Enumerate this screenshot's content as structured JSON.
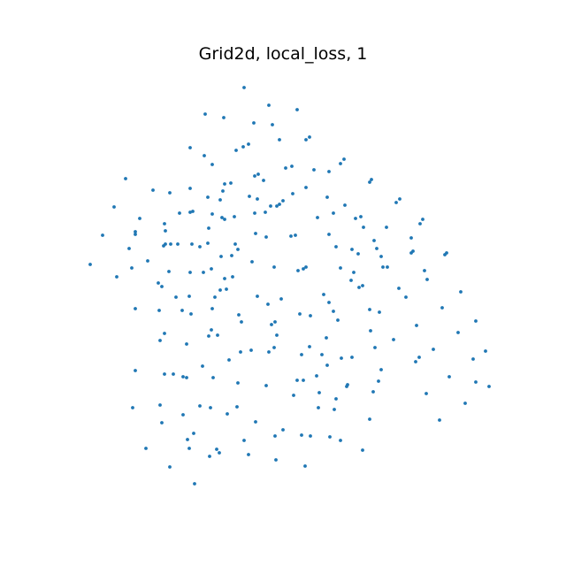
{
  "chart_data": {
    "type": "scatter",
    "title": "Grid2d, local_loss, 1",
    "xlabel": "",
    "ylabel": "",
    "axes_visible": false,
    "grid": false,
    "marker_color": "#1f77b4",
    "points": [
      [
        276,
        99
      ],
      [
        304,
        119
      ],
      [
        336,
        124
      ],
      [
        232,
        129
      ],
      [
        253,
        133
      ],
      [
        287,
        139
      ],
      [
        308,
        141
      ],
      [
        350,
        155
      ],
      [
        346,
        158
      ],
      [
        316,
        158
      ],
      [
        281,
        163
      ],
      [
        275,
        166
      ],
      [
        267,
        170
      ],
      [
        215,
        167
      ],
      [
        231,
        176
      ],
      [
        389,
        180
      ],
      [
        385,
        185
      ],
      [
        240,
        186
      ],
      [
        330,
        188
      ],
      [
        323,
        190
      ],
      [
        355,
        192
      ],
      [
        372,
        194
      ],
      [
        292,
        197
      ],
      [
        288,
        199
      ],
      [
        298,
        204
      ],
      [
        420,
        203
      ],
      [
        418,
        206
      ],
      [
        142,
        202
      ],
      [
        261,
        207
      ],
      [
        254,
        208
      ],
      [
        346,
        212
      ],
      [
        215,
        213
      ],
      [
        252,
        216
      ],
      [
        173,
        215
      ],
      [
        192,
        218
      ],
      [
        331,
        219
      ],
      [
        282,
        222
      ],
      [
        235,
        223
      ],
      [
        320,
        227
      ],
      [
        316,
        231
      ],
      [
        313,
        233
      ],
      [
        370,
        223
      ],
      [
        452,
        225
      ],
      [
        448,
        229
      ],
      [
        291,
        225
      ],
      [
        249,
        226
      ],
      [
        129,
        234
      ],
      [
        306,
        233
      ],
      [
        390,
        232
      ],
      [
        215,
        240
      ],
      [
        218,
        239
      ],
      [
        203,
        241
      ],
      [
        300,
        240
      ],
      [
        240,
        242
      ],
      [
        288,
        241
      ],
      [
        377,
        241
      ],
      [
        158,
        247
      ],
      [
        186,
        253
      ],
      [
        251,
        246
      ],
      [
        254,
        248
      ],
      [
        265,
        245
      ],
      [
        402,
        247
      ],
      [
        408,
        245
      ],
      [
        359,
        246
      ],
      [
        478,
        248
      ],
      [
        475,
        253
      ],
      [
        411,
        257
      ],
      [
        153,
        262
      ],
      [
        153,
        265
      ],
      [
        187,
        261
      ],
      [
        236,
        258
      ],
      [
        437,
        257
      ],
      [
        116,
        266
      ],
      [
        289,
        264
      ],
      [
        301,
        268
      ],
      [
        329,
        267
      ],
      [
        334,
        266
      ],
      [
        372,
        265
      ],
      [
        423,
        272
      ],
      [
        465,
        269
      ],
      [
        187,
        276
      ],
      [
        185,
        278
      ],
      [
        193,
        276
      ],
      [
        201,
        276
      ],
      [
        217,
        276
      ],
      [
        266,
        276
      ],
      [
        235,
        275
      ],
      [
        226,
        279
      ],
      [
        269,
        282
      ],
      [
        380,
        279
      ],
      [
        426,
        281
      ],
      [
        465,
        286
      ],
      [
        467,
        284
      ],
      [
        146,
        281
      ],
      [
        431,
        290
      ],
      [
        503,
        288
      ],
      [
        505,
        286
      ],
      [
        167,
        295
      ],
      [
        250,
        290
      ],
      [
        262,
        289
      ],
      [
        285,
        296
      ],
      [
        398,
        282
      ],
      [
        405,
        287
      ],
      [
        102,
        299
      ],
      [
        239,
        304
      ],
      [
        433,
        302
      ],
      [
        149,
        303
      ],
      [
        310,
        302
      ],
      [
        346,
        302
      ],
      [
        343,
        304
      ],
      [
        337,
        306
      ],
      [
        385,
        303
      ],
      [
        400,
        308
      ],
      [
        438,
        302
      ],
      [
        191,
        307
      ],
      [
        215,
        308
      ],
      [
        230,
        308
      ],
      [
        480,
        306
      ],
      [
        132,
        313
      ],
      [
        254,
        315
      ],
      [
        263,
        313
      ],
      [
        397,
        317
      ],
      [
        483,
        316
      ],
      [
        179,
        320
      ],
      [
        183,
        324
      ],
      [
        410,
        323
      ],
      [
        406,
        325
      ],
      [
        451,
        326
      ],
      [
        256,
        327
      ],
      [
        249,
        328
      ],
      [
        291,
        335
      ],
      [
        318,
        338
      ],
      [
        366,
        333
      ],
      [
        521,
        330
      ],
      [
        214,
        335
      ],
      [
        199,
        336
      ],
      [
        243,
        336
      ],
      [
        459,
        336
      ],
      [
        372,
        342
      ],
      [
        303,
        344
      ],
      [
        153,
        349
      ],
      [
        180,
        351
      ],
      [
        206,
        351
      ],
      [
        216,
        355
      ],
      [
        240,
        349
      ],
      [
        500,
        348
      ],
      [
        377,
        352
      ],
      [
        418,
        350
      ],
      [
        429,
        353
      ],
      [
        270,
        356
      ],
      [
        339,
        355
      ],
      [
        351,
        357
      ],
      [
        273,
        364
      ],
      [
        311,
        364
      ],
      [
        382,
        362
      ],
      [
        538,
        363
      ],
      [
        307,
        367
      ],
      [
        239,
        373
      ],
      [
        246,
        379
      ],
      [
        471,
        368
      ],
      [
        518,
        376
      ],
      [
        186,
        377
      ],
      [
        181,
        385
      ],
      [
        419,
        374
      ],
      [
        236,
        380
      ],
      [
        313,
        379
      ],
      [
        369,
        382
      ],
      [
        211,
        389
      ],
      [
        310,
        393
      ],
      [
        350,
        392
      ],
      [
        445,
        384
      ],
      [
        272,
        398
      ],
      [
        490,
        395
      ],
      [
        284,
        396
      ],
      [
        304,
        398
      ],
      [
        424,
        393
      ],
      [
        549,
        397
      ],
      [
        341,
        401
      ],
      [
        364,
        401
      ],
      [
        386,
        405
      ],
      [
        398,
        404
      ],
      [
        474,
        404
      ],
      [
        470,
        409
      ],
      [
        535,
        406
      ],
      [
        259,
        407
      ],
      [
        229,
        414
      ],
      [
        370,
        413
      ],
      [
        153,
        419
      ],
      [
        431,
        418
      ],
      [
        186,
        423
      ],
      [
        196,
        423
      ],
      [
        207,
        426
      ],
      [
        211,
        427
      ],
      [
        241,
        427
      ],
      [
        358,
        425
      ],
      [
        508,
        426
      ],
      [
        336,
        430
      ],
      [
        343,
        430
      ],
      [
        538,
        432
      ],
      [
        269,
        433
      ],
      [
        301,
        436
      ],
      [
        428,
        431
      ],
      [
        553,
        437
      ],
      [
        393,
        435
      ],
      [
        392,
        437
      ],
      [
        422,
        443
      ],
      [
        361,
        444
      ],
      [
        482,
        445
      ],
      [
        332,
        447
      ],
      [
        380,
        451
      ],
      [
        181,
        458
      ],
      [
        226,
        459
      ],
      [
        238,
        461
      ],
      [
        150,
        461
      ],
      [
        360,
        461
      ],
      [
        378,
        463
      ],
      [
        526,
        456
      ],
      [
        268,
        460
      ],
      [
        207,
        469
      ],
      [
        257,
        468
      ],
      [
        183,
        478
      ],
      [
        289,
        477
      ],
      [
        418,
        474
      ],
      [
        497,
        475
      ],
      [
        320,
        486
      ],
      [
        219,
        490
      ],
      [
        212,
        497
      ],
      [
        311,
        493
      ],
      [
        276,
        498
      ],
      [
        341,
        492
      ],
      [
        351,
        493
      ],
      [
        373,
        494
      ],
      [
        385,
        498
      ],
      [
        214,
        507
      ],
      [
        165,
        507
      ],
      [
        245,
        508
      ],
      [
        248,
        512
      ],
      [
        281,
        514
      ],
      [
        410,
        509
      ],
      [
        237,
        516
      ],
      [
        312,
        520
      ],
      [
        192,
        528
      ],
      [
        345,
        527
      ],
      [
        220,
        547
      ]
    ]
  }
}
